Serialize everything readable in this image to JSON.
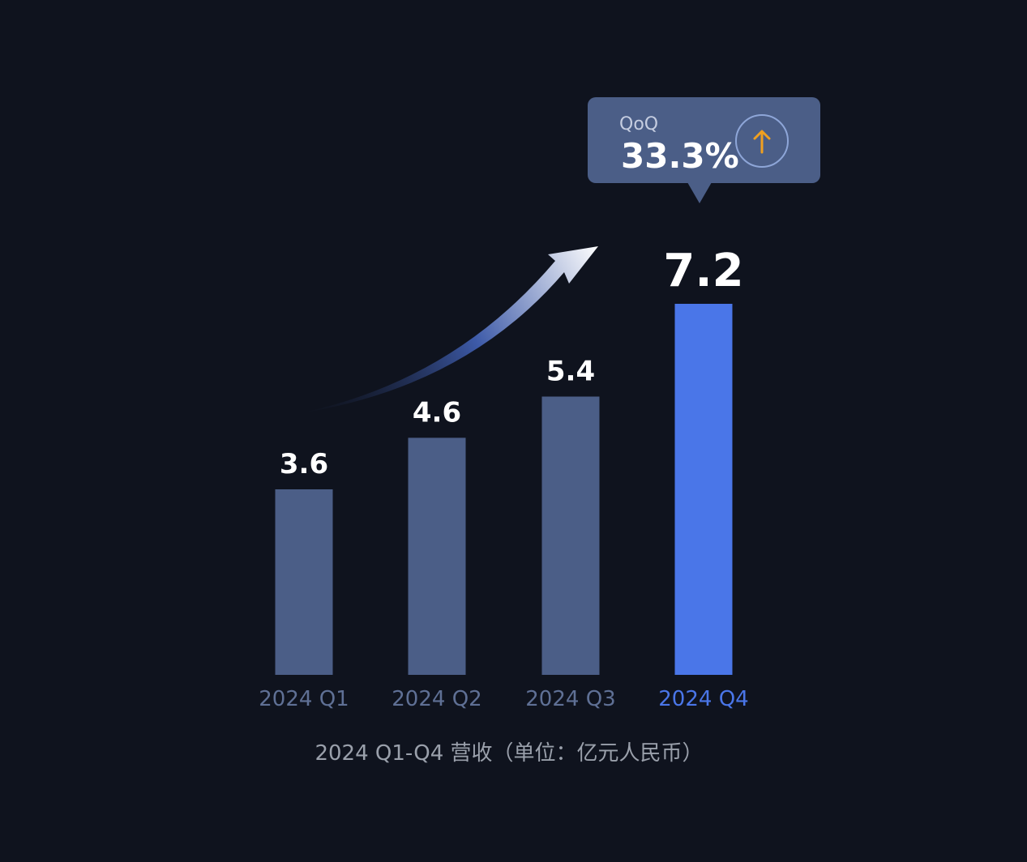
{
  "chart_data": {
    "type": "bar",
    "categories": [
      "2024 Q1",
      "2024 Q2",
      "2024 Q3",
      "2024 Q4"
    ],
    "values": [
      3.6,
      4.6,
      5.4,
      7.2
    ],
    "value_labels": [
      "3.6",
      "4.6",
      "5.4",
      "7.2"
    ],
    "highlight_index": 3,
    "ylim": [
      0,
      7.2
    ],
    "grid": false,
    "caption": "2024 Q1-Q4 营收（单位：亿元人民币）",
    "annotation": {
      "label": "QoQ",
      "value": "33.3%",
      "direction": "up"
    }
  },
  "colors": {
    "background": "#0f131e",
    "bar": "#4b5e87",
    "bar_highlight": "#4a76e8",
    "label": "#5f7095",
    "label_highlight": "#4a76e8",
    "callout": "#4b5e87",
    "arrow_accent": "#f0a020"
  },
  "icons": {
    "trend_arrow": "trend-arrow-icon",
    "up_arrow": "up-arrow-icon"
  }
}
